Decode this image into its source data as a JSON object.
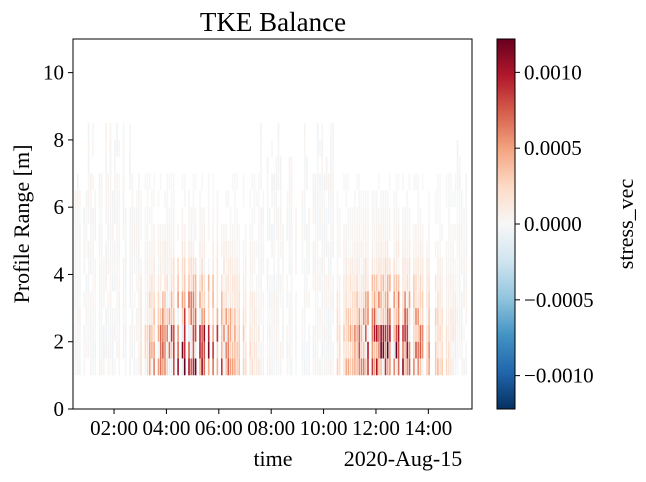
{
  "chart_data": {
    "type": "heatmap",
    "title": "TKE Balance",
    "xlabel": "time",
    "x_offset_label": "2020-Aug-15",
    "ylabel": "Profile Range [m]",
    "colorbar_label": "stress_vec",
    "colormap": "RdBu_r",
    "xlim": [
      "2020-08-15 00:26",
      "2020-08-15 15:40"
    ],
    "ylim": [
      0,
      11
    ],
    "clim": [
      -0.00122,
      0.00122
    ],
    "x_ticks": [
      {
        "t": "2020-08-15 02:00",
        "label": "02:00"
      },
      {
        "t": "2020-08-15 04:00",
        "label": "04:00"
      },
      {
        "t": "2020-08-15 06:00",
        "label": "06:00"
      },
      {
        "t": "2020-08-15 08:00",
        "label": "08:00"
      },
      {
        "t": "2020-08-15 10:00",
        "label": "10:00"
      },
      {
        "t": "2020-08-15 12:00",
        "label": "12:00"
      },
      {
        "t": "2020-08-15 14:00",
        "label": "14:00"
      }
    ],
    "y_ticks": [
      {
        "value": 0,
        "label": "0"
      },
      {
        "value": 2,
        "label": "2"
      },
      {
        "value": 4,
        "label": "4"
      },
      {
        "value": 6,
        "label": "6"
      },
      {
        "value": 8,
        "label": "8"
      },
      {
        "value": 10,
        "label": "10"
      }
    ],
    "colorbar_ticks": [
      {
        "value": 0.001,
        "label": "0.0010"
      },
      {
        "value": 0.0005,
        "label": "0.0005"
      },
      {
        "value": 0,
        "label": "0.0000"
      },
      {
        "value": -0.0005,
        "label": "−0.0005"
      },
      {
        "value": -0.001,
        "label": "−0.0010"
      }
    ],
    "time_range": [
      "2020-08-15 00:30",
      "2020-08-15 15:30"
    ],
    "range_bins": [
      1.0,
      1.5,
      2.0,
      2.5,
      3.0,
      3.5,
      4.0,
      4.5,
      5.0,
      5.5,
      6.0,
      6.5,
      7.0,
      7.5,
      8.0
    ],
    "bin_height": 0.5,
    "active_periods": [
      {
        "start": "2020-08-15 03:00",
        "end": "2020-08-15 07:30",
        "peak": "2020-08-15 05:00",
        "peak_value": 0.0011
      },
      {
        "start": "2020-08-15 10:30",
        "end": "2020-08-15 15:00",
        "peak": "2020-08-15 12:30",
        "peak_value": 0.00105
      }
    ]
  }
}
